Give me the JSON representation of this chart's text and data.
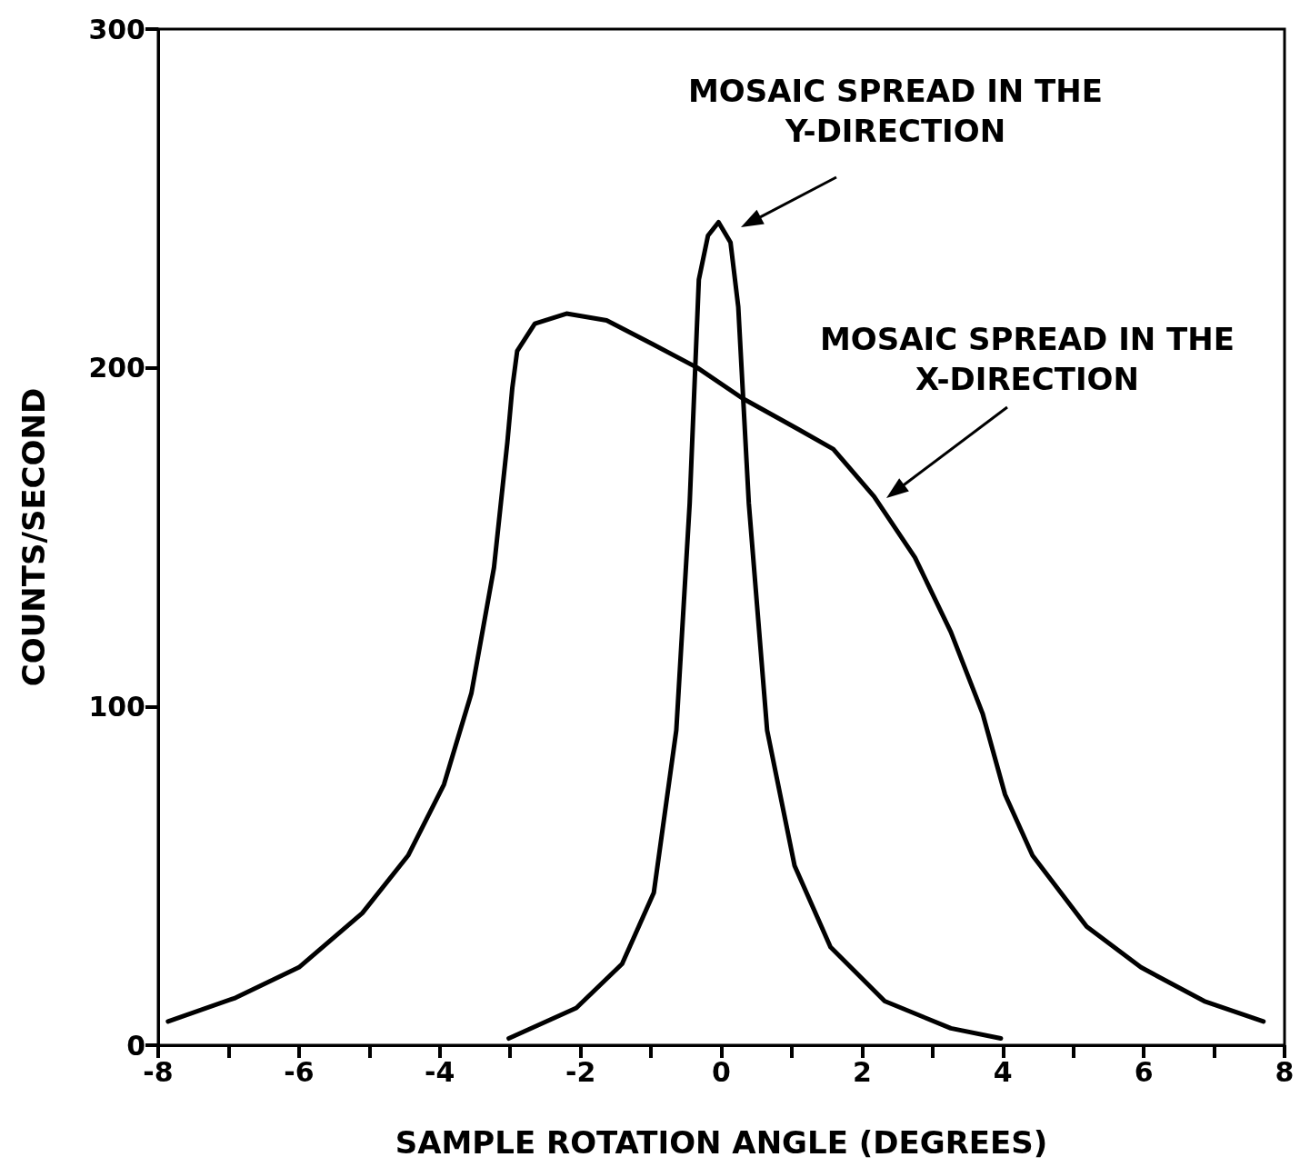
{
  "chart_data": {
    "type": "line",
    "xlabel": "SAMPLE ROTATION ANGLE (DEGREES)",
    "ylabel": "COUNTS/SECOND",
    "xlim": [
      -8,
      8
    ],
    "ylim": [
      0,
      300
    ],
    "xticks": [
      -8,
      {
        "value": -7,
        "label": null
      },
      -6,
      {
        "value": -5,
        "label": null
      },
      -4,
      {
        "value": -3,
        "label": null
      },
      -2,
      {
        "value": -1,
        "label": null
      },
      0,
      {
        "value": 1,
        "label": null
      },
      2,
      {
        "value": 3,
        "label": null
      },
      4,
      {
        "value": 5,
        "label": null
      },
      6,
      {
        "value": 7,
        "label": null
      },
      8
    ],
    "yticks": [
      0,
      100,
      200,
      300
    ],
    "grid": false,
    "marker": "none",
    "line_style": "solid",
    "series": [
      {
        "color": "#000000",
        "x": [
          -7.86,
          -6.9,
          -6.0,
          -5.1,
          -4.45,
          -3.94,
          -3.55,
          -3.23,
          -3.04,
          -2.97,
          -2.9,
          -2.65,
          -2.2,
          -1.63,
          -0.98,
          -0.34,
          0.3,
          1.08,
          1.59,
          2.17,
          2.75,
          3.26,
          3.71,
          4.03,
          4.42,
          5.19,
          5.96,
          6.86,
          7.7
        ],
        "values": [
          7,
          14,
          23,
          39,
          56,
          77,
          104,
          141,
          178,
          194,
          205,
          213,
          216,
          214,
          207,
          200,
          191,
          182,
          176,
          162,
          144,
          122,
          98,
          74,
          56,
          35,
          23,
          13,
          7
        ]
      },
      {
        "color": "#000000",
        "x": [
          -3.02,
          -2.06,
          -1.41,
          -0.96,
          -0.64,
          -0.45,
          -0.32,
          -0.19,
          -0.04,
          0.13,
          0.24,
          0.39,
          0.65,
          1.04,
          1.55,
          2.32,
          3.26,
          3.97
        ],
        "values": [
          2,
          11,
          24,
          45,
          93,
          160,
          226,
          239,
          243,
          237,
          218,
          160,
          93,
          53,
          29,
          13,
          5,
          2
        ]
      }
    ],
    "annotations": [
      "MOSAIC SPREAD IN THE\nY-DIRECTION",
      "MOSAIC SPREAD IN THE\nX-DIRECTION"
    ]
  }
}
